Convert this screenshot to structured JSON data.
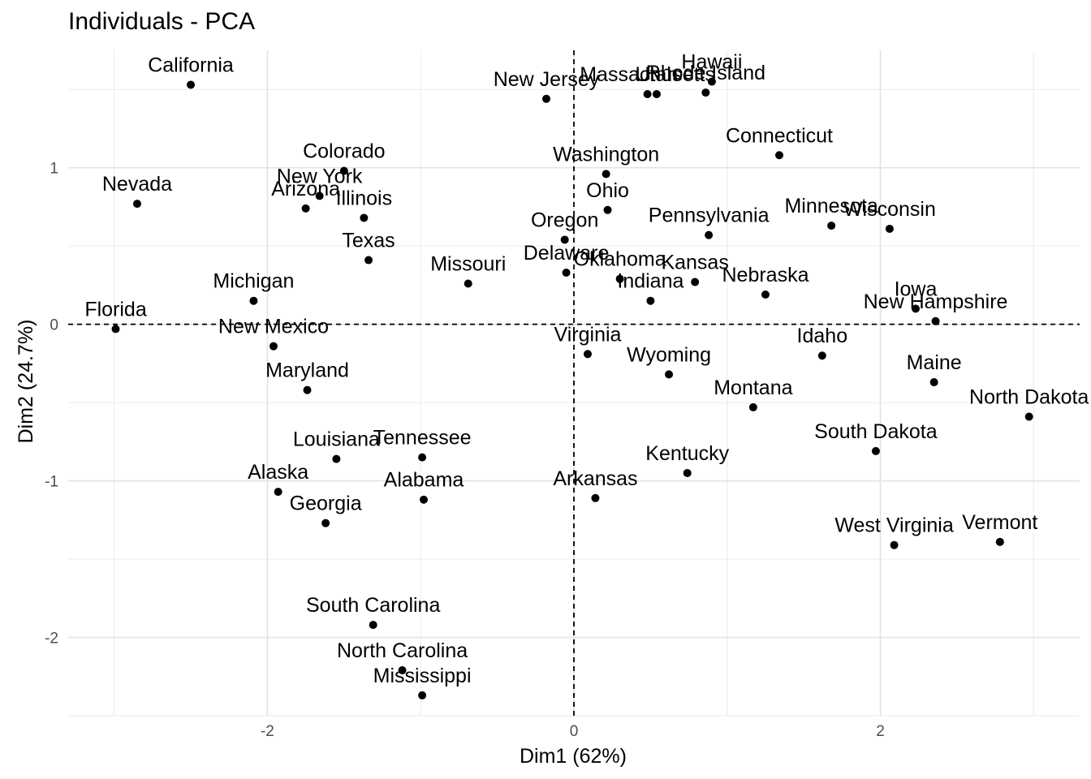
{
  "chart_data": {
    "type": "scatter",
    "title": "Individuals - PCA",
    "xlabel": "Dim1 (62%)",
    "ylabel": "Dim2 (24.7%)",
    "xlim": [
      -3.3,
      3.3
    ],
    "ylim": [
      -2.5,
      1.75
    ],
    "x_ticks": [
      -2,
      0,
      2
    ],
    "y_ticks": [
      -2,
      -1,
      0,
      1
    ],
    "x_tick_labels": [
      "-2",
      "0",
      "2"
    ],
    "y_tick_labels": [
      "-2",
      "-1",
      "0",
      "1"
    ],
    "grid": true,
    "reference_lines": {
      "x": 0,
      "y": 0,
      "style": "dashed"
    },
    "points": [
      {
        "label": "California",
        "x": -2.5,
        "y": 1.53
      },
      {
        "label": "New Jersey",
        "x": -0.18,
        "y": 1.44
      },
      {
        "label": "Massachusetts",
        "x": 0.48,
        "y": 1.47
      },
      {
        "label": "Utah",
        "x": 0.54,
        "y": 1.47
      },
      {
        "label": "Rhode Island",
        "x": 0.86,
        "y": 1.48
      },
      {
        "label": "Hawaii",
        "x": 0.9,
        "y": 1.55
      },
      {
        "label": "Connecticut",
        "x": 1.34,
        "y": 1.08
      },
      {
        "label": "Washington",
        "x": 0.21,
        "y": 0.96
      },
      {
        "label": "Colorado",
        "x": -1.5,
        "y": 0.98
      },
      {
        "label": "New York",
        "x": -1.66,
        "y": 0.82
      },
      {
        "label": "Arizona",
        "x": -1.75,
        "y": 0.74
      },
      {
        "label": "Illinois",
        "x": -1.37,
        "y": 0.68
      },
      {
        "label": "Nevada",
        "x": -2.85,
        "y": 0.77
      },
      {
        "label": "Ohio",
        "x": 0.22,
        "y": 0.73
      },
      {
        "label": "Oregon",
        "x": -0.06,
        "y": 0.54
      },
      {
        "label": "Pennsylvania",
        "x": 0.88,
        "y": 0.57
      },
      {
        "label": "Minnesota",
        "x": 1.68,
        "y": 0.63
      },
      {
        "label": "Wisconsin",
        "x": 2.06,
        "y": 0.61
      },
      {
        "label": "Texas",
        "x": -1.34,
        "y": 0.41
      },
      {
        "label": "Missouri",
        "x": -0.69,
        "y": 0.26
      },
      {
        "label": "Delaware",
        "x": -0.05,
        "y": 0.33
      },
      {
        "label": "Oklahoma",
        "x": 0.3,
        "y": 0.29
      },
      {
        "label": "Kansas",
        "x": 0.79,
        "y": 0.27
      },
      {
        "label": "Indiana",
        "x": 0.5,
        "y": 0.15
      },
      {
        "label": "Nebraska",
        "x": 1.25,
        "y": 0.19
      },
      {
        "label": "Iowa",
        "x": 2.23,
        "y": 0.1
      },
      {
        "label": "New Hampshire",
        "x": 2.36,
        "y": 0.02
      },
      {
        "label": "Michigan",
        "x": -2.09,
        "y": 0.15
      },
      {
        "label": "Florida",
        "x": -2.99,
        "y": -0.03
      },
      {
        "label": "New Mexico",
        "x": -1.96,
        "y": -0.14
      },
      {
        "label": "Virginia",
        "x": 0.09,
        "y": -0.19
      },
      {
        "label": "Idaho",
        "x": 1.62,
        "y": -0.2
      },
      {
        "label": "Wyoming",
        "x": 0.62,
        "y": -0.32
      },
      {
        "label": "Maryland",
        "x": -1.74,
        "y": -0.42
      },
      {
        "label": "Maine",
        "x": 2.35,
        "y": -0.37
      },
      {
        "label": "Montana",
        "x": 1.17,
        "y": -0.53
      },
      {
        "label": "North Dakota",
        "x": 2.97,
        "y": -0.59
      },
      {
        "label": "South Dakota",
        "x": 1.97,
        "y": -0.81
      },
      {
        "label": "Louisiana",
        "x": -1.55,
        "y": -0.86
      },
      {
        "label": "Tennessee",
        "x": -0.99,
        "y": -0.85
      },
      {
        "label": "Kentucky",
        "x": 0.74,
        "y": -0.95
      },
      {
        "label": "Alaska",
        "x": -1.93,
        "y": -1.07
      },
      {
        "label": "Alabama",
        "x": -0.98,
        "y": -1.12
      },
      {
        "label": "Arkansas",
        "x": 0.14,
        "y": -1.11
      },
      {
        "label": "Georgia",
        "x": -1.62,
        "y": -1.27
      },
      {
        "label": "West Virginia",
        "x": 2.09,
        "y": -1.41
      },
      {
        "label": "Vermont",
        "x": 2.78,
        "y": -1.39
      },
      {
        "label": "South Carolina",
        "x": -1.31,
        "y": -1.92
      },
      {
        "label": "North Carolina",
        "x": -1.12,
        "y": -2.21
      },
      {
        "label": "Mississippi",
        "x": -0.99,
        "y": -2.37
      }
    ]
  }
}
